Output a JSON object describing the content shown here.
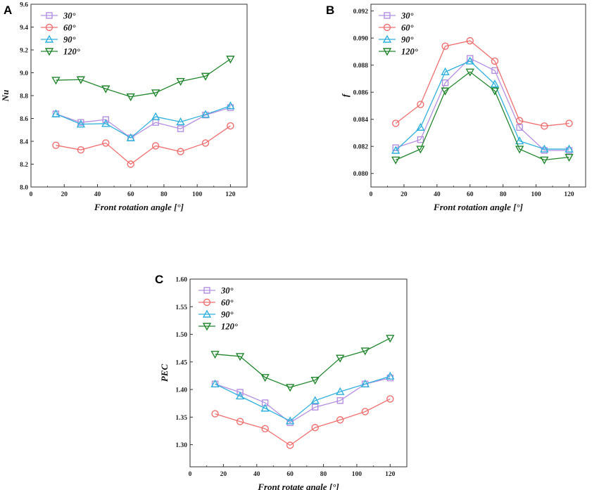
{
  "chart_data": [
    {
      "type": "line",
      "panel_label": "A",
      "xlabel": "Front rotation angle [°]",
      "ylabel": "Nu",
      "xlim": [
        0,
        130
      ],
      "ylim": [
        8.0,
        9.6
      ],
      "xticks": [
        "0",
        "20",
        "40",
        "60",
        "80",
        "100",
        "120"
      ],
      "yticks": [
        "8.0",
        "8.2",
        "8.4",
        "8.6",
        "8.8",
        "9.0",
        "9.2",
        "9.4",
        "9.6"
      ],
      "x": [
        15,
        30,
        45,
        60,
        75,
        90,
        105,
        120
      ],
      "series": [
        {
          "name": "30°",
          "values": [
            8.64,
            8.565,
            8.59,
            8.43,
            8.565,
            8.51,
            8.63,
            8.695
          ]
        },
        {
          "name": "60°",
          "values": [
            8.365,
            8.325,
            8.385,
            8.2,
            8.36,
            8.31,
            8.385,
            8.535
          ]
        },
        {
          "name": "90°",
          "values": [
            8.64,
            8.55,
            8.555,
            8.43,
            8.615,
            8.57,
            8.635,
            8.71
          ]
        },
        {
          "name": "120°",
          "values": [
            8.935,
            8.94,
            8.86,
            8.79,
            8.825,
            8.925,
            8.97,
            9.12
          ]
        }
      ]
    },
    {
      "type": "line",
      "panel_label": "B",
      "xlabel": "Front rotation angle [°]",
      "ylabel": "f",
      "xlim": [
        0,
        130
      ],
      "ylim": [
        0.079,
        0.0925
      ],
      "xticks": [
        "0",
        "20",
        "40",
        "60",
        "80",
        "100",
        "120"
      ],
      "yticks": [
        "0.080",
        "0.082",
        "0.084",
        "0.086",
        "0.088",
        "0.090",
        "0.092"
      ],
      "x": [
        15,
        30,
        45,
        60,
        75,
        90,
        105,
        120
      ],
      "series": [
        {
          "name": "30°",
          "values": [
            0.0819,
            0.0825,
            0.0867,
            0.0885,
            0.0876,
            0.0834,
            0.0817,
            0.0817
          ]
        },
        {
          "name": "60°",
          "values": [
            0.0837,
            0.0851,
            0.0894,
            0.0898,
            0.0883,
            0.0839,
            0.0835,
            0.0837
          ]
        },
        {
          "name": "90°",
          "values": [
            0.0817,
            0.0834,
            0.0875,
            0.0883,
            0.0866,
            0.0824,
            0.0818,
            0.0818
          ]
        },
        {
          "name": "120°",
          "values": [
            0.081,
            0.0818,
            0.0861,
            0.0875,
            0.0861,
            0.0818,
            0.081,
            0.0812
          ]
        }
      ]
    },
    {
      "type": "line",
      "panel_label": "C",
      "xlabel": "Front rotate angle [°]",
      "ylabel": "PEC",
      "xlim": [
        0,
        130
      ],
      "ylim": [
        1.26,
        1.6
      ],
      "xticks": [
        "0",
        "20",
        "40",
        "60",
        "80",
        "100",
        "120"
      ],
      "yticks": [
        "1.30",
        "1.35",
        "1.40",
        "1.45",
        "1.50",
        "1.55",
        "1.60"
      ],
      "x": [
        15,
        30,
        45,
        60,
        75,
        90,
        105,
        120
      ],
      "series": [
        {
          "name": "30°",
          "values": [
            1.41,
            1.395,
            1.376,
            1.34,
            1.368,
            1.38,
            1.41,
            1.421
          ]
        },
        {
          "name": "60°",
          "values": [
            1.356,
            1.342,
            1.329,
            1.299,
            1.331,
            1.345,
            1.36,
            1.383
          ]
        },
        {
          "name": "90°",
          "values": [
            1.41,
            1.388,
            1.366,
            1.343,
            1.38,
            1.396,
            1.41,
            1.424
          ]
        },
        {
          "name": "120°",
          "values": [
            1.464,
            1.46,
            1.422,
            1.404,
            1.417,
            1.457,
            1.47,
            1.493
          ]
        }
      ]
    }
  ],
  "series_styles": [
    {
      "marker": "square",
      "color": "#b48fe0"
    },
    {
      "marker": "circle",
      "color": "#ef6f6f"
    },
    {
      "marker": "triangle-up",
      "color": "#2fb1dc"
    },
    {
      "marker": "triangle-down",
      "color": "#22862e"
    }
  ]
}
